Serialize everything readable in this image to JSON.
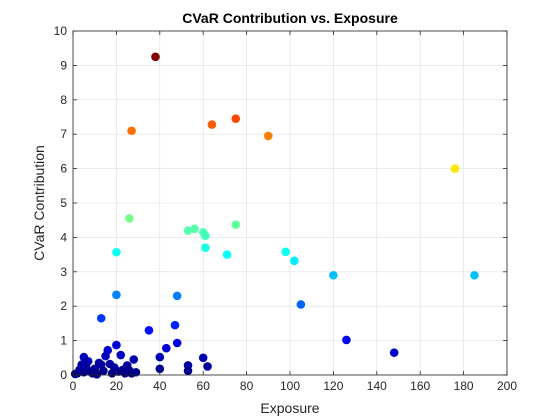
{
  "chart_data": {
    "type": "scatter",
    "title": "CVaR Contribution vs. Exposure",
    "xlabel": "Exposure",
    "ylabel": "CVaR Contribution",
    "xlim": [
      0,
      200
    ],
    "ylim": [
      0,
      10
    ],
    "xticks": [
      "0",
      "20",
      "40",
      "60",
      "80",
      "100",
      "120",
      "140",
      "160",
      "180",
      "200"
    ],
    "yticks": [
      "0",
      "1",
      "2",
      "3",
      "4",
      "5",
      "6",
      "7",
      "8",
      "9",
      "10"
    ],
    "grid": true,
    "colormap": "jet",
    "color_range": [
      0,
      9.25
    ],
    "points": [
      {
        "x": 1,
        "y": 0.03
      },
      {
        "x": 2,
        "y": 0.05
      },
      {
        "x": 3,
        "y": 0.15
      },
      {
        "x": 4,
        "y": 0.3
      },
      {
        "x": 5,
        "y": 0.52
      },
      {
        "x": 5,
        "y": 0.08
      },
      {
        "x": 6,
        "y": 0.25
      },
      {
        "x": 7,
        "y": 0.4
      },
      {
        "x": 8,
        "y": 0.1
      },
      {
        "x": 9,
        "y": 0.05
      },
      {
        "x": 10,
        "y": 0.18
      },
      {
        "x": 11,
        "y": 0.02
      },
      {
        "x": 12,
        "y": 0.35
      },
      {
        "x": 13,
        "y": 0.3
      },
      {
        "x": 14,
        "y": 0.12
      },
      {
        "x": 15,
        "y": 0.55
      },
      {
        "x": 16,
        "y": 0.72
      },
      {
        "x": 17,
        "y": 0.32
      },
      {
        "x": 18,
        "y": 0.05
      },
      {
        "x": 19,
        "y": 0.22
      },
      {
        "x": 20,
        "y": 0.87
      },
      {
        "x": 21,
        "y": 0.1
      },
      {
        "x": 22,
        "y": 0.58
      },
      {
        "x": 23,
        "y": 0.15
      },
      {
        "x": 24,
        "y": 0.05
      },
      {
        "x": 25,
        "y": 0.28
      },
      {
        "x": 26,
        "y": 0.13
      },
      {
        "x": 27,
        "y": 0.05
      },
      {
        "x": 28,
        "y": 0.45
      },
      {
        "x": 29,
        "y": 0.08
      },
      {
        "x": 35,
        "y": 1.3
      },
      {
        "x": 40,
        "y": 0.52
      },
      {
        "x": 40,
        "y": 0.18
      },
      {
        "x": 43,
        "y": 0.78
      },
      {
        "x": 47,
        "y": 1.45
      },
      {
        "x": 48,
        "y": 0.93
      },
      {
        "x": 53,
        "y": 0.28
      },
      {
        "x": 53,
        "y": 0.12
      },
      {
        "x": 60,
        "y": 0.5
      },
      {
        "x": 62,
        "y": 0.25
      },
      {
        "x": 126,
        "y": 1.02
      },
      {
        "x": 148,
        "y": 0.65
      },
      {
        "x": 13,
        "y": 1.65
      },
      {
        "x": 20,
        "y": 2.33
      },
      {
        "x": 48,
        "y": 2.3
      },
      {
        "x": 105,
        "y": 2.05
      },
      {
        "x": 20,
        "y": 3.57
      },
      {
        "x": 61,
        "y": 3.7
      },
      {
        "x": 71,
        "y": 3.5
      },
      {
        "x": 98,
        "y": 3.58
      },
      {
        "x": 102,
        "y": 3.32
      },
      {
        "x": 120,
        "y": 2.9
      },
      {
        "x": 185,
        "y": 2.9
      },
      {
        "x": 26,
        "y": 4.55
      },
      {
        "x": 53,
        "y": 4.2
      },
      {
        "x": 56,
        "y": 4.25
      },
      {
        "x": 60,
        "y": 4.15
      },
      {
        "x": 61,
        "y": 4.05
      },
      {
        "x": 75,
        "y": 4.37
      },
      {
        "x": 176,
        "y": 6.0
      },
      {
        "x": 27,
        "y": 7.1
      },
      {
        "x": 64,
        "y": 7.28
      },
      {
        "x": 75,
        "y": 7.45
      },
      {
        "x": 90,
        "y": 6.95
      },
      {
        "x": 38,
        "y": 9.25
      }
    ]
  }
}
